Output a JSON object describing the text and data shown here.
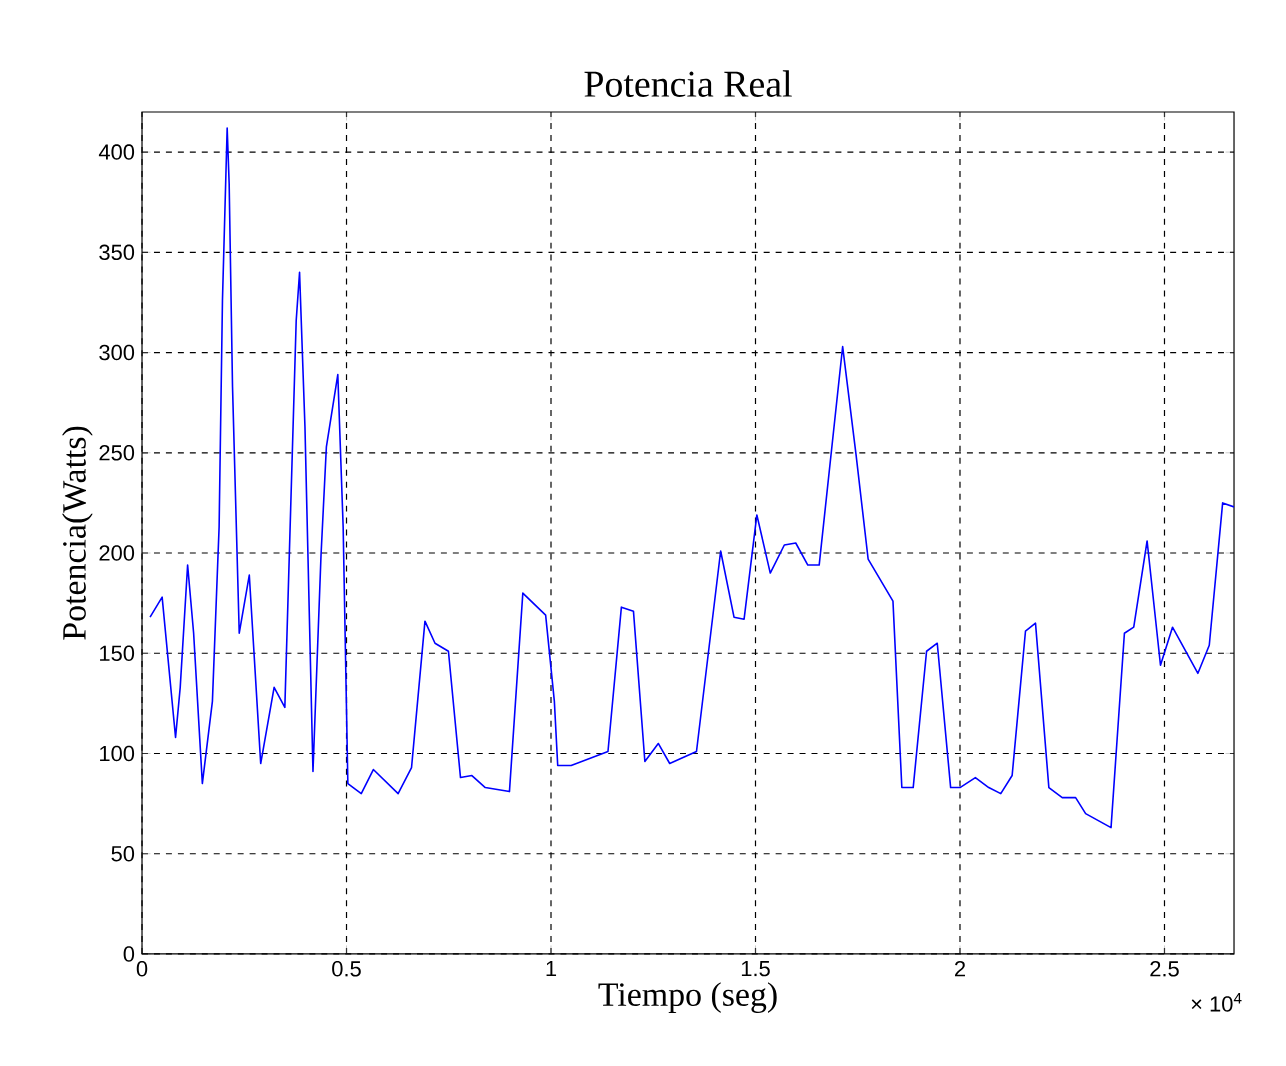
{
  "chart_data": {
    "type": "line",
    "title": "Potencia Real",
    "xlabel": "Tiempo (seg)",
    "ylabel": "Potencia(Watts)",
    "annotations": [
      "× 10$^{4}$"
    ],
    "xlim": [
      0,
      2.67
    ],
    "ylim": [
      0,
      420
    ],
    "xticks": [
      0,
      0.5,
      1,
      1.5,
      2,
      2.5
    ],
    "yticks": [
      0,
      50,
      100,
      150,
      200,
      250,
      300,
      350,
      400
    ],
    "grid": true,
    "series": [
      {
        "color": "#0000ff",
        "x": [
          0.0197,
          0.0492,
          0.082,
          0.0934,
          0.1115,
          0.1262,
          0.1475,
          0.1721,
          0.1885,
          0.1967,
          0.2082,
          0.2131,
          0.2213,
          0.2377,
          0.2623,
          0.2902,
          0.323,
          0.3492,
          0.377,
          0.3852,
          0.3984,
          0.418,
          0.4377,
          0.4508,
          0.4787,
          0.4918,
          0.5033,
          0.5361,
          0.5656,
          0.6262,
          0.659,
          0.6918,
          0.7164,
          0.7492,
          0.7787,
          0.8066,
          0.8393,
          0.8984,
          0.9311,
          0.9869,
          1.0082,
          1.0164,
          1.0492,
          1.1393,
          1.1721,
          1.2016,
          1.2295,
          1.2623,
          1.2902,
          1.3557,
          1.4148,
          1.4475,
          1.4721,
          1.5033,
          1.5361,
          1.5705,
          1.5984,
          1.6279,
          1.6557,
          1.7131,
          1.7459,
          1.7754,
          1.8361,
          1.8578,
          1.8856,
          1.9183,
          1.9444,
          1.9771,
          2.0,
          2.0376,
          2.0703,
          2.0997,
          2.1275,
          2.1601,
          2.1846,
          2.2173,
          2.25,
          2.2827,
          2.3072,
          2.3693,
          2.402,
          2.4248,
          2.4575,
          2.4902,
          2.5196,
          2.5817,
          2.6095,
          2.6422,
          2.67
        ],
        "values": [
          168,
          178,
          108,
          133,
          194,
          160,
          85,
          126,
          213,
          326,
          412,
          384,
          283,
          160,
          189,
          95,
          133,
          123,
          316,
          340,
          263,
          91,
          199,
          253,
          289,
          213,
          85,
          80,
          92,
          80,
          93,
          166,
          155,
          151,
          88,
          89,
          83,
          81,
          180,
          169,
          126,
          94,
          94,
          101,
          173,
          171,
          96,
          105,
          95,
          101,
          201,
          168,
          167,
          219,
          190,
          204,
          205,
          194,
          194,
          303,
          249,
          197,
          176,
          83,
          83,
          151,
          155,
          83,
          83,
          88,
          83,
          80,
          89,
          161,
          165,
          83,
          78,
          78,
          70,
          63,
          160,
          163,
          206,
          144,
          163,
          140,
          154,
          225,
          223
        ]
      }
    ]
  }
}
